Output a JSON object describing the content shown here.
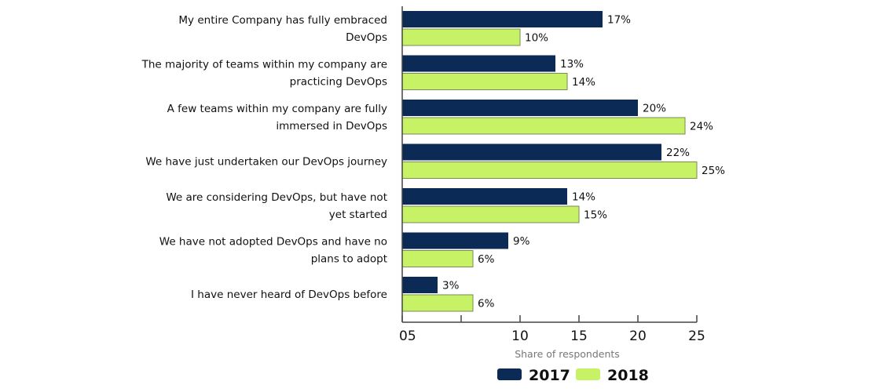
{
  "chart_data": {
    "type": "bar",
    "orientation": "horizontal",
    "categories": [
      [
        "My entire Company has fully embraced",
        "DevOps"
      ],
      [
        "The majority of teams within my company are",
        "practicing DevOps"
      ],
      [
        "A few teams within my company are fully",
        "immersed in DevOps"
      ],
      [
        "We have just undertaken our DevOps journey"
      ],
      [
        "We are considering DevOps, but have not",
        "yet started"
      ],
      [
        "We have not adopted DevOps and have no",
        "plans to adopt"
      ],
      [
        "I have never heard of DevOps before"
      ]
    ],
    "series": [
      {
        "name": "2017",
        "color": "#0b2a55",
        "values": [
          17,
          13,
          20,
          22,
          14,
          9,
          3
        ]
      },
      {
        "name": "2018",
        "color": "#c8f266",
        "values": [
          10,
          14,
          24,
          25,
          15,
          6,
          6
        ]
      }
    ],
    "data_label_suffix": "%",
    "xlabel": "Share of respondents",
    "xlim": [
      0,
      25
    ],
    "xticks": [
      0,
      5,
      10,
      15,
      20,
      25
    ],
    "xtick_labels": [
      "05",
      "",
      "10",
      "15",
      "20",
      "25"
    ],
    "grid": false,
    "legend": "bottom"
  }
}
